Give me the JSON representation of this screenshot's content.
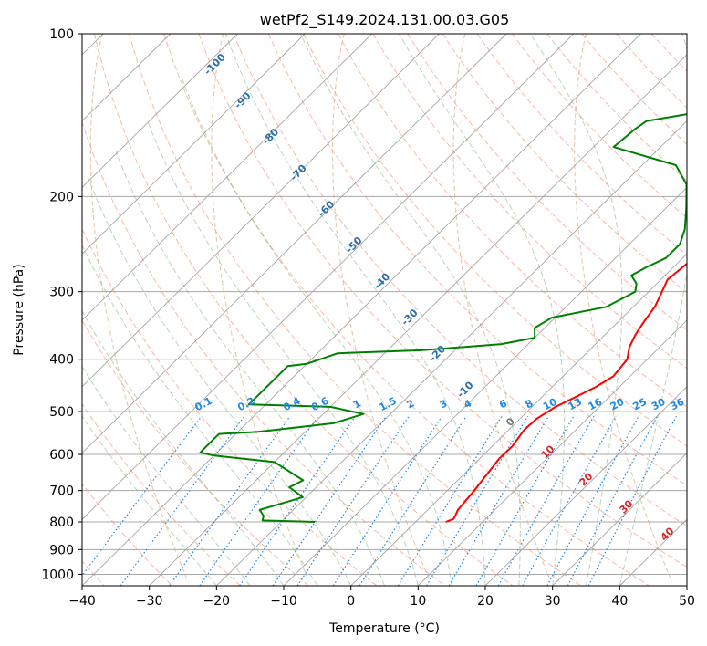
{
  "chart_data": {
    "type": "line",
    "title": "wetPf2_S149.2024.131.00.03.G05",
    "xlabel": "Temperature (°C)",
    "ylabel": "Pressure (hPa)",
    "xlim": [
      -40,
      50
    ],
    "ylim": [
      1050,
      100
    ],
    "y_scale": "log",
    "grid": true,
    "x_ticks": [
      -40,
      -30,
      -20,
      -10,
      0,
      10,
      20,
      30,
      40,
      50
    ],
    "y_ticks": [
      100,
      200,
      300,
      400,
      500,
      600,
      700,
      800,
      900,
      1000
    ],
    "series": [
      {
        "color": "#ff0000",
        "points": [
          [
            4.5,
            800
          ],
          [
            5.2,
            790
          ],
          [
            5.0,
            780
          ],
          [
            4.5,
            760
          ],
          [
            4.0,
            700
          ],
          [
            3.3,
            640
          ],
          [
            2.9,
            610
          ],
          [
            3.0,
            580
          ],
          [
            2.3,
            540
          ],
          [
            2.5,
            515
          ],
          [
            3.5,
            490
          ],
          [
            5.0,
            470
          ],
          [
            6.5,
            450
          ],
          [
            7.5,
            430
          ],
          [
            7.0,
            400
          ],
          [
            5.5,
            380
          ],
          [
            4.5,
            360
          ],
          [
            3.8,
            340
          ],
          [
            3.2,
            320
          ],
          [
            2.0,
            300
          ],
          [
            1.0,
            285
          ],
          [
            1.5,
            265
          ],
          [
            1.0,
            250
          ],
          [
            -1.0,
            235
          ],
          [
            -1.5,
            220
          ],
          [
            -0.5,
            200
          ],
          [
            0.5,
            190
          ],
          [
            3.5,
            180
          ],
          [
            6.0,
            170
          ],
          [
            9.0,
            160
          ],
          [
            11.5,
            150
          ],
          [
            13.0,
            140
          ],
          [
            15.5,
            130
          ],
          [
            17.5,
            122
          ],
          [
            19.5,
            115
          ],
          [
            21.5,
            108
          ],
          [
            22.5,
            100
          ]
        ]
      },
      {
        "color": "#008000",
        "points": [
          [
            -15.0,
            800
          ],
          [
            -23.0,
            795
          ],
          [
            -23.5,
            780
          ],
          [
            -25.0,
            760
          ],
          [
            -20.5,
            720
          ],
          [
            -24.0,
            690
          ],
          [
            -23.0,
            670
          ],
          [
            -30.0,
            620
          ],
          [
            -40.0,
            603
          ],
          [
            -42.5,
            595
          ],
          [
            -42.5,
            550
          ],
          [
            -37.0,
            545
          ],
          [
            -27.0,
            525
          ],
          [
            -24.0,
            505
          ],
          [
            -30.0,
            490
          ],
          [
            -42.5,
            485
          ],
          [
            -42.5,
            412
          ],
          [
            -40.0,
            408
          ],
          [
            -37.0,
            390
          ],
          [
            -25.0,
            385
          ],
          [
            -14.0,
            375
          ],
          [
            -10.0,
            365
          ],
          [
            -11.5,
            350
          ],
          [
            -10.5,
            335
          ],
          [
            -4.0,
            320
          ],
          [
            -2.0,
            300
          ],
          [
            -3.0,
            290
          ],
          [
            -5.0,
            280
          ],
          [
            -4.0,
            270
          ],
          [
            -2.5,
            260
          ],
          [
            -2.5,
            245
          ],
          [
            -4.0,
            230
          ],
          [
            -7.0,
            210
          ],
          [
            -10.5,
            190
          ],
          [
            -15.0,
            175
          ],
          [
            -27.0,
            162
          ],
          [
            -26.5,
            150
          ],
          [
            -26.0,
            145
          ],
          [
            -20.0,
            140
          ],
          [
            -14.0,
            135
          ],
          [
            -12.0,
            130
          ],
          [
            -11.5,
            125
          ],
          [
            -10.5,
            118
          ],
          [
            -7.5,
            112
          ],
          [
            -3.0,
            105
          ],
          [
            0.0,
            100
          ]
        ]
      }
    ],
    "background_lines": {
      "dry_adiabat_color": "#f08060",
      "moist_adiabat_color": "#70b070",
      "mixing_ratio_color": "#1e88e5",
      "isotherm_color": "#888888",
      "height_curve_color": "#d2a679"
    },
    "annotations": {
      "mixing_ratio_labels": [
        "0.1",
        "0.2",
        "0.4",
        "0.6",
        "1",
        "1.5",
        "2",
        "3",
        "4",
        "6",
        "8",
        "10",
        "13",
        "16",
        "20",
        "25",
        "30",
        "36"
      ],
      "isotherm_labels_blue": [
        "-100",
        "-90",
        "-80",
        "-70",
        "-60",
        "-50",
        "-40",
        "-30",
        "-20",
        "-10"
      ],
      "isotherm_labels_red": [
        "0",
        "10",
        "20",
        "30",
        "40"
      ]
    }
  }
}
